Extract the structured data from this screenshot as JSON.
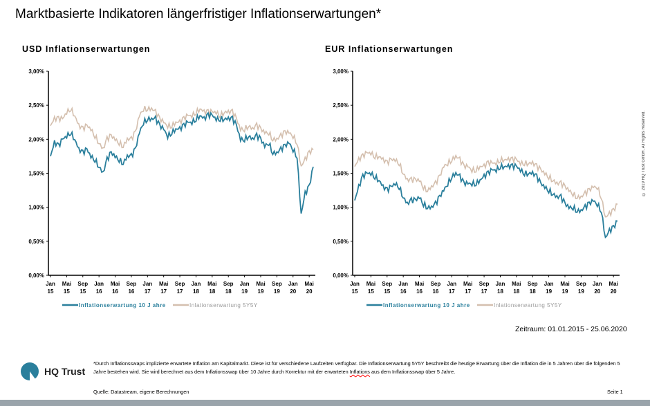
{
  "title": "Marktbasierte Indikatoren längerfristiger Inflationserwartungen*",
  "period": "Zeitraum: 01.01.2015 - 25.06.2020",
  "footnote_a": "*Durch Inflationsswaps implizierte erwartete Inflation am Kapitalmarkt. Diese ist für verschiedene Laufzeiten verfügbar. Die Inflationserwartung 5Y5Y beschreibt die heutige Erwartung über die Inflation die in 5 Jahren über die folgenden 5 Jahre bestehen wird. Sie wird berechnet aus dem Inflationsswap über 10 Jahre durch Korrektur mit der erwarteten ",
  "footnote_b": "Inflations",
  "footnote_c": " aus dem Inflationsswap über 5 Jahre.",
  "source": "Quelle: Datastream, eigene Berechnungen",
  "page": "Seite 1",
  "logo": "HQ Trust",
  "copyright": "© 2019 HQ Trust GmbH. All Rights Reserved.",
  "colors": {
    "ten_year": "#2a7f9c",
    "fivey5y": "#d4bfae"
  },
  "chart_data": [
    {
      "type": "line",
      "title": "USD Inflationserwartungen",
      "ylim": [
        0,
        3
      ],
      "yticks": [
        "0,00%",
        "0,50%",
        "1,00%",
        "1,50%",
        "2,00%",
        "2,50%",
        "3,00%"
      ],
      "xticks": [
        [
          "Jan",
          "15"
        ],
        [
          "Mai",
          "15"
        ],
        [
          "Sep",
          "15"
        ],
        [
          "Jan",
          "16"
        ],
        [
          "Mai",
          "16"
        ],
        [
          "Sep",
          "16"
        ],
        [
          "Jan",
          "17"
        ],
        [
          "Mai",
          "17"
        ],
        [
          "Sep",
          "17"
        ],
        [
          "Jan",
          "18"
        ],
        [
          "Mai",
          "18"
        ],
        [
          "Sep",
          "18"
        ],
        [
          "Jan",
          "19"
        ],
        [
          "Mai",
          "19"
        ],
        [
          "Sep",
          "19"
        ],
        [
          "Jan",
          "20"
        ],
        [
          "Mai",
          "20"
        ]
      ],
      "x_start": "2015-01",
      "x_end": "2020-06",
      "series": [
        {
          "name": "Inflationserwartung 10 J ahre",
          "values": [
            1.75,
            1.95,
            1.9,
            2.0,
            2.05,
            2.1,
            2.0,
            1.85,
            1.8,
            1.85,
            1.75,
            1.7,
            1.6,
            1.5,
            1.7,
            1.8,
            1.75,
            1.7,
            1.65,
            1.75,
            1.75,
            1.85,
            2.1,
            2.25,
            2.3,
            2.3,
            2.3,
            2.2,
            2.15,
            2.05,
            2.1,
            2.15,
            2.15,
            2.2,
            2.25,
            2.25,
            2.3,
            2.35,
            2.3,
            2.35,
            2.35,
            2.3,
            2.3,
            2.3,
            2.3,
            2.3,
            2.2,
            2.0,
            2.0,
            2.05,
            2.0,
            2.05,
            2.0,
            1.9,
            1.95,
            1.8,
            1.8,
            1.85,
            1.9,
            1.95,
            1.85,
            1.75,
            0.9,
            1.2,
            1.3,
            1.6
          ]
        },
        {
          "name": "Inlationserwartung 5Y5Y",
          "values": [
            2.2,
            2.3,
            2.3,
            2.3,
            2.4,
            2.45,
            2.35,
            2.2,
            2.15,
            2.2,
            2.15,
            2.05,
            1.95,
            1.85,
            2.0,
            2.05,
            2.0,
            1.95,
            1.9,
            2.0,
            2.0,
            2.1,
            2.35,
            2.45,
            2.45,
            2.45,
            2.4,
            2.3,
            2.25,
            2.2,
            2.2,
            2.25,
            2.25,
            2.3,
            2.35,
            2.35,
            2.4,
            2.45,
            2.4,
            2.4,
            2.4,
            2.4,
            2.35,
            2.4,
            2.4,
            2.4,
            2.3,
            2.15,
            2.15,
            2.2,
            2.15,
            2.2,
            2.15,
            2.1,
            2.1,
            2.0,
            2.0,
            2.05,
            2.1,
            2.1,
            2.05,
            1.95,
            1.6,
            1.7,
            1.8,
            1.85
          ]
        }
      ]
    },
    {
      "type": "line",
      "title": "EUR Inflationserwartungen",
      "ylim": [
        0,
        3
      ],
      "yticks": [
        "0,00%",
        "0,50%",
        "1,00%",
        "1,50%",
        "2,00%",
        "2,50%",
        "3,00%"
      ],
      "xticks": [
        [
          "Jan",
          "15"
        ],
        [
          "Mai",
          "15"
        ],
        [
          "Sep",
          "15"
        ],
        [
          "Jan",
          "16"
        ],
        [
          "Mai",
          "16"
        ],
        [
          "Sep",
          "16"
        ],
        [
          "Jan",
          "17"
        ],
        [
          "Mai",
          "17"
        ],
        [
          "Sep",
          "17"
        ],
        [
          "Jan",
          "18"
        ],
        [
          "Mai",
          "18"
        ],
        [
          "Sep",
          "18"
        ],
        [
          "Jan",
          "19"
        ],
        [
          "Mai",
          "19"
        ],
        [
          "Sep",
          "19"
        ],
        [
          "Jan",
          "20"
        ],
        [
          "Mai",
          "20"
        ]
      ],
      "x_start": "2015-01",
      "x_end": "2020-06",
      "series": [
        {
          "name": "Inflationserwartung 10 J ahre",
          "values": [
            1.1,
            1.3,
            1.45,
            1.5,
            1.5,
            1.45,
            1.4,
            1.3,
            1.25,
            1.3,
            1.35,
            1.3,
            1.15,
            1.05,
            1.1,
            1.1,
            1.15,
            1.05,
            1.0,
            1.0,
            1.05,
            1.15,
            1.25,
            1.35,
            1.45,
            1.5,
            1.45,
            1.35,
            1.35,
            1.35,
            1.35,
            1.4,
            1.45,
            1.5,
            1.55,
            1.55,
            1.6,
            1.6,
            1.6,
            1.6,
            1.6,
            1.55,
            1.5,
            1.5,
            1.5,
            1.45,
            1.35,
            1.3,
            1.25,
            1.2,
            1.15,
            1.15,
            1.05,
            1.0,
            1.0,
            0.95,
            0.95,
            1.0,
            1.05,
            1.1,
            1.05,
            0.95,
            0.55,
            0.65,
            0.7,
            0.8
          ]
        },
        {
          "name": "Inlationserwartung 5Y5Y",
          "values": [
            1.6,
            1.7,
            1.75,
            1.8,
            1.8,
            1.75,
            1.75,
            1.7,
            1.65,
            1.7,
            1.7,
            1.65,
            1.5,
            1.4,
            1.4,
            1.4,
            1.4,
            1.3,
            1.25,
            1.3,
            1.35,
            1.45,
            1.6,
            1.65,
            1.7,
            1.75,
            1.7,
            1.6,
            1.6,
            1.55,
            1.55,
            1.6,
            1.6,
            1.65,
            1.65,
            1.65,
            1.7,
            1.7,
            1.7,
            1.7,
            1.7,
            1.65,
            1.65,
            1.65,
            1.65,
            1.6,
            1.55,
            1.5,
            1.45,
            1.4,
            1.35,
            1.35,
            1.3,
            1.25,
            1.2,
            1.15,
            1.15,
            1.2,
            1.25,
            1.3,
            1.3,
            1.15,
            0.85,
            0.9,
            0.95,
            1.05
          ]
        }
      ]
    }
  ]
}
